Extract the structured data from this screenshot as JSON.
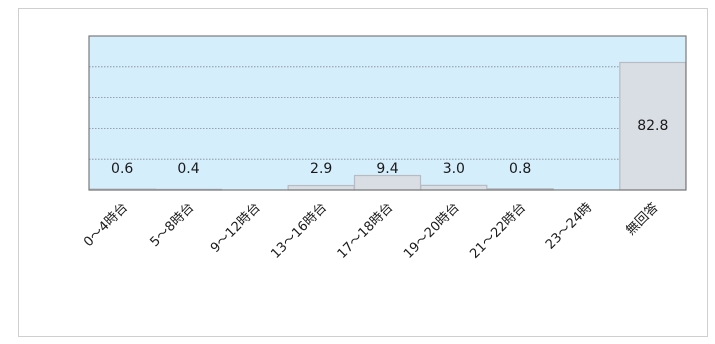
{
  "chart_data": {
    "type": "bar",
    "categories": [
      "0～4時台",
      "5～8時台",
      "9～12時台",
      "13～16時台",
      "17～18時台",
      "19～20時台",
      "21～22時台",
      "23～24時",
      "無回答"
    ],
    "values": [
      0.6,
      0.4,
      null,
      2.9,
      9.4,
      3.0,
      0.8,
      null,
      82.8
    ],
    "value_labels": [
      "0.6",
      "0.4",
      "",
      "2.9",
      "9.4",
      "3.0",
      "0.8",
      "",
      "82.8"
    ],
    "ylim": [
      0,
      100
    ],
    "grid": true,
    "legend": "none",
    "colors": {
      "plot_background": "#d5eefb",
      "bar_fill": "#d9dde4",
      "bar_stroke": "#b7bcc4",
      "gridline": "#7f8a99",
      "axis": "#7a7a7a"
    }
  }
}
